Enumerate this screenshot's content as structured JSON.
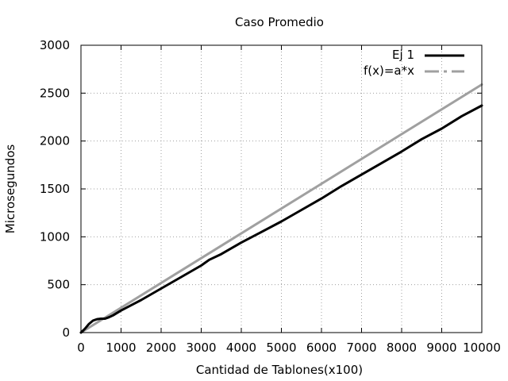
{
  "chart_data": {
    "type": "line",
    "title": "Caso Promedio",
    "xlabel": "Cantidad de Tablones(x100)",
    "ylabel": "Microsegundos",
    "xlim": [
      0,
      10000
    ],
    "ylim": [
      0,
      3000
    ],
    "x_ticks": [
      "0",
      "1000",
      "2000",
      "3000",
      "4000",
      "5000",
      "6000",
      "7000",
      "8000",
      "9000",
      "10000"
    ],
    "y_ticks": [
      "0",
      "500",
      "1000",
      "1500",
      "2000",
      "2500",
      "3000"
    ],
    "grid": true,
    "legend_position": "top-right",
    "series": [
      {
        "name": "Ej 1",
        "color": "#000000",
        "style": "solid",
        "x": [
          0,
          100,
          200,
          300,
          400,
          500,
          600,
          700,
          800,
          1000,
          1500,
          2000,
          2500,
          3000,
          3200,
          3500,
          4000,
          4500,
          5000,
          5500,
          6000,
          6500,
          7000,
          7500,
          8000,
          8500,
          9000,
          9500,
          10000
        ],
        "y": [
          0,
          40,
          90,
          125,
          140,
          145,
          145,
          160,
          180,
          230,
          340,
          460,
          580,
          700,
          760,
          820,
          940,
          1050,
          1160,
          1280,
          1400,
          1530,
          1650,
          1770,
          1890,
          2020,
          2130,
          2260,
          2370
        ]
      },
      {
        "name": "f(x)=a*x",
        "color": "#a0a0a0",
        "style": "dashed",
        "x": [
          0,
          10000
        ],
        "y": [
          0,
          2590
        ]
      }
    ]
  }
}
